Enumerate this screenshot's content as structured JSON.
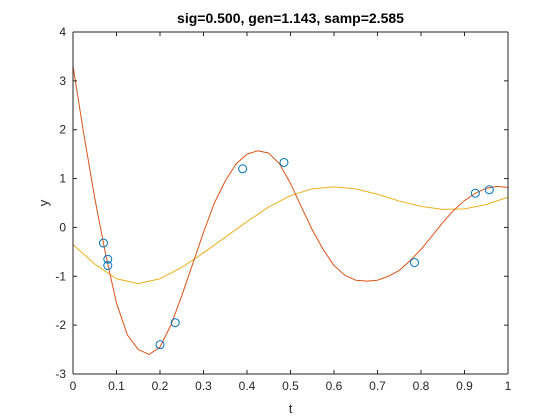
{
  "chart_data": {
    "type": "line",
    "title": "sig=0.500, gen=1.143, samp=2.585",
    "xlabel": "t",
    "ylabel": "y",
    "xlim": [
      0,
      1
    ],
    "ylim": [
      -3,
      4
    ],
    "xticks": [
      0,
      0.1,
      0.2,
      0.3,
      0.4,
      0.5,
      0.6,
      0.7,
      0.8,
      0.9,
      1
    ],
    "xtick_labels": [
      "0",
      "0.1",
      "0.2",
      "0.3",
      "0.4",
      "0.5",
      "0.6",
      "0.7",
      "0.8",
      "0.9",
      "1"
    ],
    "yticks": [
      -3,
      -2,
      -1,
      0,
      1,
      2,
      3,
      4
    ],
    "ytick_labels": [
      "-3",
      "-2",
      "-1",
      "0",
      "1",
      "2",
      "3",
      "4"
    ],
    "grid": false,
    "series": [
      {
        "kind": "line",
        "color": "#EDB120",
        "x": [
          0,
          0.05,
          0.1,
          0.15,
          0.2,
          0.25,
          0.3,
          0.35,
          0.4,
          0.45,
          0.5,
          0.55,
          0.6,
          0.65,
          0.7,
          0.75,
          0.8,
          0.85,
          0.9,
          0.95,
          1
        ],
        "values": [
          -0.35,
          -0.75,
          -1.05,
          -1.15,
          -1.05,
          -0.82,
          -0.52,
          -0.2,
          0.12,
          0.42,
          0.65,
          0.79,
          0.83,
          0.79,
          0.68,
          0.54,
          0.43,
          0.37,
          0.38,
          0.47,
          0.62
        ]
      },
      {
        "kind": "line",
        "color": "#D95319",
        "x": [
          0,
          0.025,
          0.05,
          0.075,
          0.1,
          0.125,
          0.15,
          0.175,
          0.2,
          0.225,
          0.25,
          0.275,
          0.3,
          0.325,
          0.35,
          0.375,
          0.4,
          0.425,
          0.45,
          0.475,
          0.5,
          0.525,
          0.55,
          0.575,
          0.6,
          0.625,
          0.65,
          0.675,
          0.7,
          0.725,
          0.75,
          0.775,
          0.8,
          0.825,
          0.85,
          0.875,
          0.9,
          0.925,
          0.95,
          0.975,
          1
        ],
        "values": [
          3.3,
          1.9,
          0.6,
          -0.55,
          -1.55,
          -2.2,
          -2.5,
          -2.6,
          -2.45,
          -2.0,
          -1.4,
          -0.75,
          -0.1,
          0.5,
          0.95,
          1.3,
          1.5,
          1.57,
          1.52,
          1.3,
          0.9,
          0.42,
          -0.05,
          -0.45,
          -0.78,
          -0.98,
          -1.08,
          -1.1,
          -1.08,
          -1.0,
          -0.88,
          -0.68,
          -0.45,
          -0.18,
          0.1,
          0.35,
          0.55,
          0.7,
          0.8,
          0.84,
          0.82
        ]
      },
      {
        "kind": "scatter",
        "color": "#0072BD",
        "x": [
          0.07,
          0.08,
          0.08,
          0.2,
          0.235,
          0.39,
          0.485,
          0.785,
          0.925,
          0.957
        ],
        "values": [
          -0.32,
          -0.65,
          -0.78,
          -2.4,
          -1.95,
          1.2,
          1.33,
          -0.72,
          0.7,
          0.77
        ]
      }
    ]
  }
}
